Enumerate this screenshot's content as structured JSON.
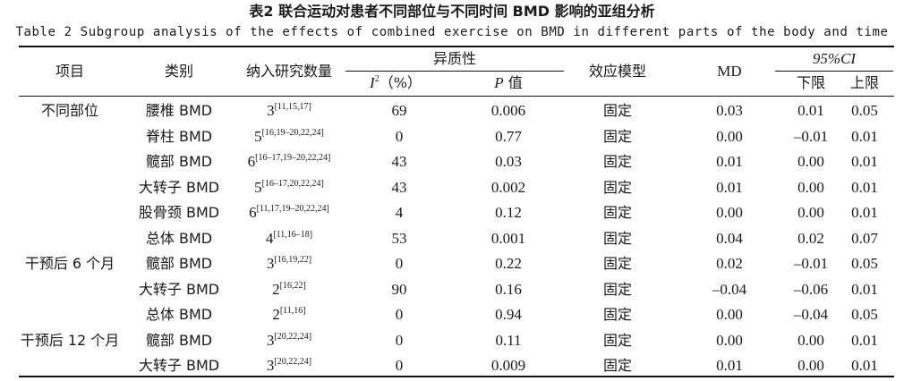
{
  "title_cn": "表2   联合运动对患者不同部位与不同时间 BMD 影响的亚组分析",
  "title_en": "Table 2 Subgroup analysis of the effects of combined exercise on BMD in different parts of the body and time",
  "headers": {
    "item": "项目",
    "category": "类别",
    "studies": "纳入研究数量",
    "heterogeneity": "异质性",
    "i2": "I",
    "i2_sup": "2",
    "i2_unit": "（%）",
    "p_italic": "P",
    "p_text": " 值",
    "model": "效应模型",
    "md": "MD",
    "ci": "95%CI",
    "lower": "下限",
    "upper": "上限"
  },
  "groups": [
    {
      "label": "不同部位",
      "row": 0
    },
    {
      "label": "干预后 6 个月",
      "row": 6
    },
    {
      "label": "干预后 12 个月",
      "row": 9
    }
  ],
  "rows": [
    {
      "category": "腰椎 BMD",
      "n": "3",
      "refs": "[11,15,17]",
      "i2": "69",
      "p": "0.006",
      "model": "固定",
      "md": "0.03",
      "lower": "0.01",
      "upper": "0.05"
    },
    {
      "category": "脊柱 BMD",
      "n": "5",
      "refs": "[16,19–20,22,24]",
      "i2": "0",
      "p": "0.77",
      "model": "固定",
      "md": "0.00",
      "lower": "–0.01",
      "upper": "0.01"
    },
    {
      "category": "髋部 BMD",
      "n": "6",
      "refs": "[16–17,19–20,22,24]",
      "i2": "43",
      "p": "0.03",
      "model": "固定",
      "md": "0.01",
      "lower": "0.00",
      "upper": "0.01"
    },
    {
      "category": "大转子 BMD",
      "n": "5",
      "refs": "[16–17,20,22,24]",
      "i2": "43",
      "p": "0.002",
      "model": "固定",
      "md": "0.01",
      "lower": "0.00",
      "upper": "0.01"
    },
    {
      "category": "股骨颈 BMD",
      "n": "6",
      "refs": "[11,17,19–20,22,24]",
      "i2": "4",
      "p": "0.12",
      "model": "固定",
      "md": "0.00",
      "lower": "0.00",
      "upper": "0.01"
    },
    {
      "category": "总体 BMD",
      "n": "4",
      "refs": "[11,16–18]",
      "i2": "53",
      "p": "0.001",
      "model": "固定",
      "md": "0.04",
      "lower": "0.02",
      "upper": "0.07"
    },
    {
      "category": "髋部 BMD",
      "n": "3",
      "refs": "[16,19,22]",
      "i2": "0",
      "p": "0.22",
      "model": "固定",
      "md": "0.02",
      "lower": "–0.01",
      "upper": "0.05"
    },
    {
      "category": "大转子 BMD",
      "n": "2",
      "refs": "[16,22]",
      "i2": "90",
      "p": "0.16",
      "model": "固定",
      "md": "–0.04",
      "lower": "–0.06",
      "upper": "0.01"
    },
    {
      "category": "总体 BMD",
      "n": "2",
      "refs": "[11,16]",
      "i2": "0",
      "p": "0.94",
      "model": "固定",
      "md": "0.00",
      "lower": "–0.04",
      "upper": "0.05"
    },
    {
      "category": "髋部 BMD",
      "n": "3",
      "refs": "[20,22,24]",
      "i2": "0",
      "p": "0.11",
      "model": "固定",
      "md": "0.00",
      "lower": "0.00",
      "upper": "0.01"
    },
    {
      "category": "大转子 BMD",
      "n": "3",
      "refs": "[20,22,24]",
      "i2": "0",
      "p": "0.009",
      "model": "固定",
      "md": "0.01",
      "lower": "0.00",
      "upper": "0.01"
    }
  ]
}
